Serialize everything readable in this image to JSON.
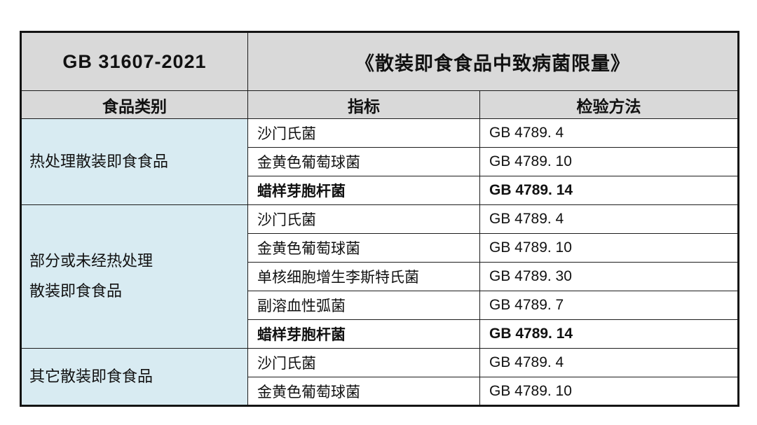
{
  "table": {
    "standard_code": "GB 31607-2021",
    "title": "《散装即食食品中致病菌限量》",
    "columns": [
      "食品类别",
      "指标",
      "检验方法"
    ],
    "groups": [
      {
        "category": "热处理散装即食食品",
        "rows": [
          {
            "indicator": "沙门氏菌",
            "method": "GB 4789. 4",
            "bold": false
          },
          {
            "indicator": "金黄色葡萄球菌",
            "method": "GB 4789. 10",
            "bold": false
          },
          {
            "indicator": "蜡样芽胞杆菌",
            "method": "GB 4789. 14",
            "bold": true
          }
        ]
      },
      {
        "category": "部分或未经热处理\n散装即食食品",
        "rows": [
          {
            "indicator": "沙门氏菌",
            "method": "GB 4789. 4",
            "bold": false
          },
          {
            "indicator": "金黄色葡萄球菌",
            "method": "GB 4789. 10",
            "bold": false
          },
          {
            "indicator": "单核细胞增生李斯特氏菌",
            "method": "GB 4789. 30",
            "bold": false
          },
          {
            "indicator": "副溶血性弧菌",
            "method": "GB 4789. 7",
            "bold": false
          },
          {
            "indicator": "蜡样芽胞杆菌",
            "method": "GB 4789. 14",
            "bold": true
          }
        ]
      },
      {
        "category": "其它散装即食食品",
        "rows": [
          {
            "indicator": "沙门氏菌",
            "method": "GB 4789. 4",
            "bold": false
          },
          {
            "indicator": "金黄色葡萄球菌",
            "method": "GB 4789. 10",
            "bold": false
          }
        ]
      }
    ],
    "colors": {
      "header_bg": "#d9d9d9",
      "category_bg": "#d8ebf2",
      "border": "#1c1c1c",
      "text": "#111111",
      "page_bg": "#ffffff"
    }
  }
}
